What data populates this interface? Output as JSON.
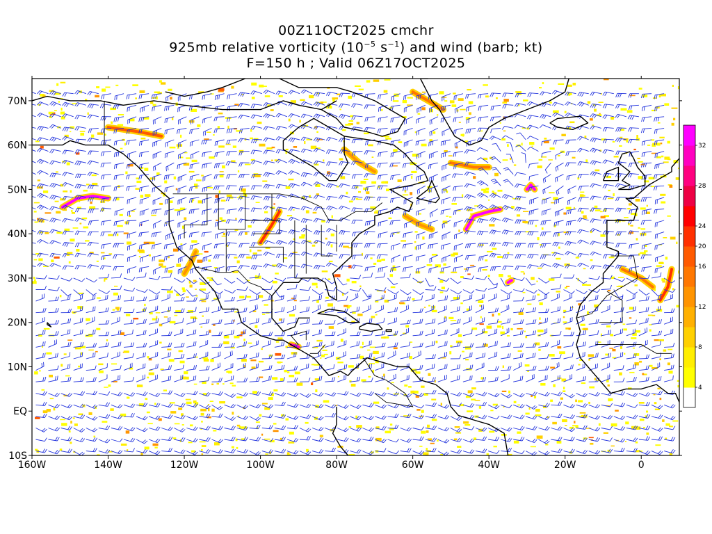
{
  "title": {
    "line1": "00Z11OCT2025 cmchr",
    "line2_pre": "925mb relative vorticity (10",
    "line2_exp1": "−5",
    "line2_mid": " s",
    "line2_exp2": "−1",
    "line2_post": ") and wind (barb; kt)",
    "line3": "F=150 h ; Valid 06Z17OCT2025"
  },
  "map": {
    "lon_range": [
      -160,
      10
    ],
    "lat_range": [
      -10,
      75
    ],
    "x_ticks": [
      {
        "lon": -160,
        "label": "160W"
      },
      {
        "lon": -140,
        "label": "140W"
      },
      {
        "lon": -120,
        "label": "120W"
      },
      {
        "lon": -100,
        "label": "100W"
      },
      {
        "lon": -80,
        "label": "80W"
      },
      {
        "lon": -60,
        "label": "60W"
      },
      {
        "lon": -40,
        "label": "40W"
      },
      {
        "lon": -20,
        "label": "20W"
      },
      {
        "lon": 0,
        "label": "0"
      }
    ],
    "y_ticks": [
      {
        "lat": 70,
        "label": "70N"
      },
      {
        "lat": 60,
        "label": "60N"
      },
      {
        "lat": 50,
        "label": "50N"
      },
      {
        "lat": 40,
        "label": "40N"
      },
      {
        "lat": 30,
        "label": "30N"
      },
      {
        "lat": 20,
        "label": "20N"
      },
      {
        "lat": 10,
        "label": "10N"
      },
      {
        "lat": 0,
        "label": "EQ"
      },
      {
        "lat": -10,
        "label": "10S"
      }
    ],
    "barb_color": "#2233dd",
    "coast_color": "#000000"
  },
  "colorbar": {
    "colors": [
      "#ffffff",
      "#ffff00",
      "#ffee00",
      "#ffd000",
      "#ffb000",
      "#ff9400",
      "#ff7700",
      "#ff5a00",
      "#ff3000",
      "#ff0000",
      "#ee0044",
      "#ff0080",
      "#ff00c0",
      "#ff00ff"
    ],
    "labels": [
      {
        "index": 1,
        "label": "4"
      },
      {
        "index": 3,
        "label": "8"
      },
      {
        "index": 5,
        "label": "12"
      },
      {
        "index": 7,
        "label": "16"
      },
      {
        "index": 8,
        "label": "20"
      },
      {
        "index": 9,
        "label": "24"
      },
      {
        "index": 11,
        "label": "28"
      },
      {
        "index": 13,
        "label": "32"
      }
    ]
  },
  "features": {
    "vorticity_streaks": [
      {
        "pts": [
          [
            -152,
            46
          ],
          [
            -148,
            48
          ],
          [
            -144,
            48.5
          ],
          [
            -140,
            48
          ]
        ],
        "c": "#ff00ff"
      },
      {
        "pts": [
          [
            -46,
            41
          ],
          [
            -44,
            44
          ],
          [
            -40,
            45
          ],
          [
            -37,
            45.5
          ]
        ],
        "c": "#ff00ff"
      },
      {
        "pts": [
          [
            -30,
            50
          ],
          [
            -29,
            51
          ],
          [
            -28,
            50
          ]
        ],
        "c": "#ff00ff"
      },
      {
        "pts": [
          [
            -100,
            38
          ],
          [
            -97,
            42
          ],
          [
            -95,
            45
          ]
        ],
        "c": "#ff3000"
      },
      {
        "pts": [
          [
            -62,
            44
          ],
          [
            -58,
            42
          ],
          [
            -55,
            41
          ]
        ],
        "c": "#ff9400"
      },
      {
        "pts": [
          [
            -78,
            59
          ],
          [
            -74,
            56
          ],
          [
            -70,
            54
          ]
        ],
        "c": "#ff9400"
      },
      {
        "pts": [
          [
            -50,
            56
          ],
          [
            -44,
            55
          ],
          [
            -40,
            55
          ]
        ],
        "c": "#ff7700"
      },
      {
        "pts": [
          [
            -60,
            72
          ],
          [
            -56,
            70
          ],
          [
            -52,
            68
          ]
        ],
        "c": "#ff7700"
      },
      {
        "pts": [
          [
            -140,
            64
          ],
          [
            -132,
            63
          ],
          [
            -126,
            62
          ]
        ],
        "c": "#ff5a00"
      },
      {
        "pts": [
          [
            -92,
            15
          ],
          [
            -90,
            14.5
          ]
        ],
        "c": "#ff00c0"
      },
      {
        "pts": [
          [
            -5,
            32
          ],
          [
            0,
            30
          ],
          [
            3,
            28
          ]
        ],
        "c": "#ff7700"
      },
      {
        "pts": [
          [
            5,
            25
          ],
          [
            7,
            28
          ],
          [
            8,
            32
          ]
        ],
        "c": "#ff3000"
      },
      {
        "pts": [
          [
            -35,
            29
          ],
          [
            -34,
            29.5
          ]
        ],
        "c": "#ff00ff"
      },
      {
        "pts": [
          [
            -120,
            31
          ],
          [
            -118,
            34
          ],
          [
            -117,
            36
          ]
        ],
        "c": "#ff9400"
      }
    ]
  }
}
